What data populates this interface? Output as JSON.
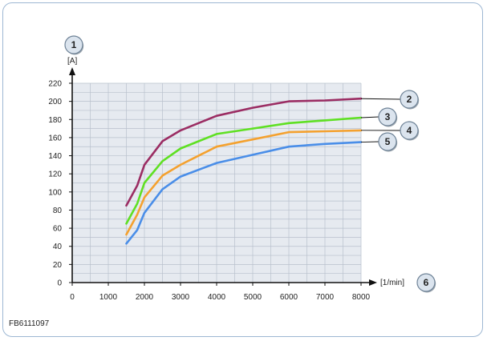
{
  "figure_code": "FB6111097",
  "chart_data": {
    "type": "line",
    "y_unit": "[A]",
    "x_unit": "[1/min]",
    "xlim": [
      0,
      8000
    ],
    "ylim": [
      0,
      220
    ],
    "x_ticks": [
      0,
      1000,
      2000,
      3000,
      4000,
      5000,
      6000,
      7000,
      8000
    ],
    "y_ticks": [
      0,
      20,
      40,
      60,
      80,
      100,
      120,
      140,
      160,
      180,
      200,
      220
    ],
    "grid": true,
    "background": "#e6eaf0",
    "grid_color": "#b8c0cc",
    "series": [
      {
        "callout": "2",
        "color": "#9b2d63",
        "x": [
          1500,
          1800,
          2000,
          2500,
          3000,
          4000,
          5000,
          6000,
          7000,
          8000
        ],
        "y": [
          85,
          107,
          130,
          156,
          168,
          184,
          193,
          200,
          201,
          203
        ]
      },
      {
        "callout": "3",
        "color": "#5fe023",
        "x": [
          1500,
          1800,
          2000,
          2500,
          3000,
          4000,
          5000,
          6000,
          7000,
          8000
        ],
        "y": [
          65,
          87,
          110,
          134,
          148,
          164,
          170,
          176,
          179,
          182
        ]
      },
      {
        "callout": "4",
        "color": "#f4a12f",
        "x": [
          1500,
          1800,
          2000,
          2500,
          3000,
          4000,
          5000,
          6000,
          7000,
          8000
        ],
        "y": [
          53,
          75,
          94,
          118,
          130,
          150,
          158,
          166,
          167,
          168
        ]
      },
      {
        "callout": "5",
        "color": "#4a8ee8",
        "x": [
          1500,
          1800,
          2000,
          2500,
          3000,
          4000,
          5000,
          6000,
          7000,
          8000
        ],
        "y": [
          43,
          58,
          77,
          103,
          117,
          132,
          141,
          150,
          153,
          155
        ]
      }
    ],
    "callouts": {
      "y_axis": "1",
      "x_axis": "6"
    }
  }
}
